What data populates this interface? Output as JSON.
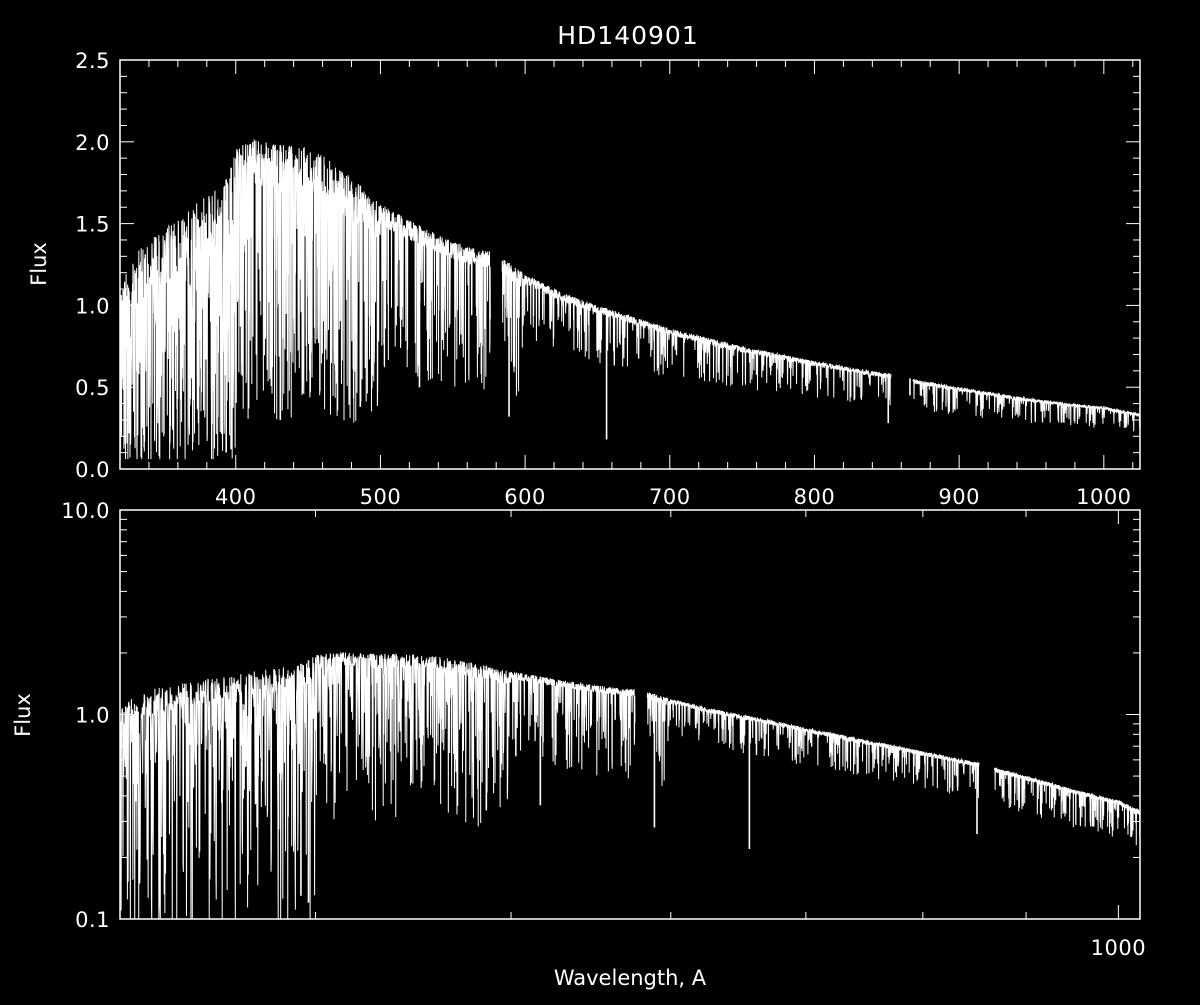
{
  "chart_data": [
    {
      "type": "line",
      "panel": "top",
      "title": "HD140901",
      "xlabel": "",
      "ylabel": "Flux",
      "xscale": "linear",
      "yscale": "linear",
      "xlim": [
        320,
        1025
      ],
      "ylim": [
        0.0,
        2.5
      ],
      "xticks": [
        400,
        500,
        600,
        700,
        800,
        900,
        1000
      ],
      "yticks": [
        0.0,
        0.5,
        1.0,
        1.5,
        2.0,
        2.5
      ],
      "xtick_labels": [
        "400",
        "500",
        "600",
        "700",
        "800",
        "900",
        "1000"
      ],
      "ytick_labels": [
        "0.0",
        "0.5",
        "1.0",
        "1.5",
        "2.0",
        "2.5"
      ],
      "line_color": "#ffffff",
      "background": "#000000",
      "gaps": [
        [
          576,
          584
        ],
        [
          853,
          868
        ]
      ],
      "continuum": {
        "x": [
          320,
          330,
          345,
          360,
          370,
          385,
          395,
          400,
          410,
          420,
          430,
          440,
          450,
          460,
          470,
          480,
          490,
          500,
          520,
          540,
          560,
          576,
          584,
          600,
          625,
          650,
          675,
          700,
          750,
          800,
          853,
          868,
          900,
          950,
          1000,
          1025
        ],
        "y": [
          1.1,
          1.32,
          1.45,
          1.52,
          1.6,
          1.72,
          1.78,
          1.95,
          2.02,
          2.0,
          1.98,
          1.98,
          1.97,
          1.92,
          1.85,
          1.78,
          1.7,
          1.62,
          1.52,
          1.43,
          1.36,
          1.33,
          1.29,
          1.19,
          1.08,
          1.0,
          0.93,
          0.86,
          0.75,
          0.66,
          0.58,
          0.55,
          0.5,
          0.43,
          0.38,
          0.34
        ]
      },
      "deep_lines": [
        {
          "x": 588.9,
          "y": 0.32
        },
        {
          "x": 656.3,
          "y": 0.18
        },
        {
          "x": 486.1,
          "y": 0.38
        },
        {
          "x": 527.0,
          "y": 0.5
        },
        {
          "x": 851.0,
          "y": 0.28
        },
        {
          "x": 866.0,
          "y": 0.45
        },
        {
          "x": 396.8,
          "y": 0.12
        },
        {
          "x": 393.4,
          "y": 0.1
        },
        {
          "x": 430.8,
          "y": 0.3
        }
      ]
    },
    {
      "type": "line",
      "panel": "bottom",
      "title": "",
      "xlabel": "Wavelength, A",
      "ylabel": "Flux",
      "xscale": "log",
      "yscale": "log",
      "xlim": [
        320,
        1025
      ],
      "ylim": [
        0.1,
        10.0
      ],
      "xticks": [
        1000
      ],
      "yticks": [
        0.1,
        1.0,
        10.0
      ],
      "xtick_labels": [
        "1000"
      ],
      "ytick_labels": [
        "0.1",
        "1.0",
        "10.0"
      ],
      "line_color": "#ffffff",
      "background": "#000000",
      "gaps": [
        [
          576,
          584
        ],
        [
          853,
          868
        ]
      ],
      "deep_lines": [
        {
          "x": 588.9,
          "y": 0.28
        },
        {
          "x": 656.3,
          "y": 0.22
        },
        {
          "x": 486.1,
          "y": 0.34
        },
        {
          "x": 517.0,
          "y": 0.36
        },
        {
          "x": 851.0,
          "y": 0.26
        },
        {
          "x": 396.8,
          "y": 0.12
        },
        {
          "x": 393.4,
          "y": 0.13
        }
      ]
    }
  ]
}
